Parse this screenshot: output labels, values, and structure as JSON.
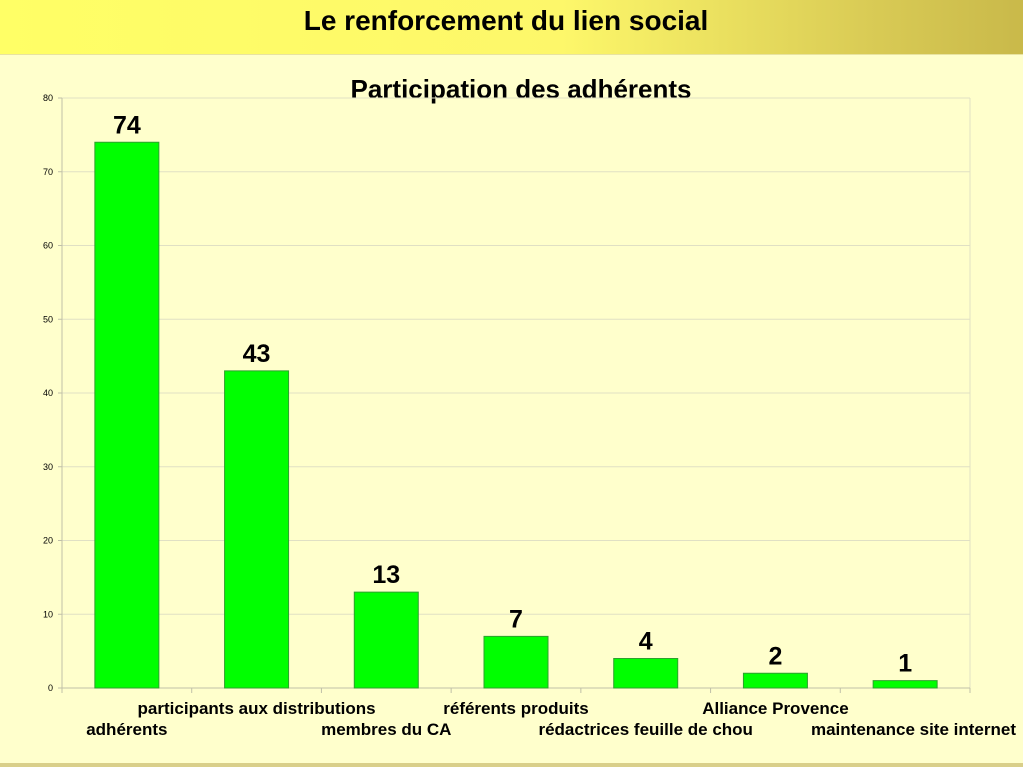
{
  "header": {
    "title": "Le renforcement du lien social"
  },
  "colors": {
    "bar": "#00ff00",
    "bar_border": "#2ea02e",
    "grid": "#e0e0c4",
    "axis": "#c0c0a8",
    "background": "#ffffcc"
  },
  "chart_data": {
    "type": "bar",
    "title": "Participation des adhérents",
    "xlabel": "",
    "ylabel": "",
    "ylim": [
      0,
      80
    ],
    "yticks": [
      0,
      10,
      20,
      30,
      40,
      50,
      60,
      70,
      80
    ],
    "grid": true,
    "categories": [
      "adhérents",
      "participants aux distributions",
      "membres du CA",
      "référents produits",
      "rédactrices feuille de chou",
      "Alliance Provence",
      "maintenance site internet"
    ],
    "values": [
      74,
      43,
      13,
      7,
      4,
      2,
      1
    ],
    "data_labels": [
      "74",
      "43",
      "13",
      "7",
      "4",
      "2",
      "1"
    ]
  }
}
